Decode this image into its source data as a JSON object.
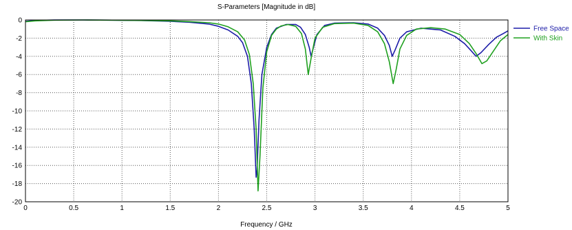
{
  "chart_data": {
    "type": "line",
    "title": "S-Parameters [Magnitude in dB]",
    "xlabel": "Frequency / GHz",
    "ylabel": "",
    "xlim": [
      0,
      5
    ],
    "ylim": [
      -20,
      0
    ],
    "x_ticks": [
      "0",
      "0.5",
      "1",
      "1.5",
      "2",
      "2.5",
      "3",
      "3.5",
      "4",
      "4.5",
      "5"
    ],
    "y_ticks": [
      "0",
      "-2",
      "-4",
      "-6",
      "-8",
      "-10",
      "-12",
      "-14",
      "-16",
      "-18",
      "-20"
    ],
    "grid": true,
    "legend_position": "right",
    "series": [
      {
        "name": "Free Space",
        "color": "#1c1ca8",
        "points": [
          [
            0.0,
            -0.15
          ],
          [
            0.1,
            -0.05
          ],
          [
            0.3,
            0.0
          ],
          [
            0.6,
            0.0
          ],
          [
            0.9,
            -0.02
          ],
          [
            1.2,
            -0.06
          ],
          [
            1.5,
            -0.15
          ],
          [
            1.7,
            -0.25
          ],
          [
            1.9,
            -0.45
          ],
          [
            2.0,
            -0.7
          ],
          [
            2.1,
            -1.1
          ],
          [
            2.2,
            -1.8
          ],
          [
            2.25,
            -2.5
          ],
          [
            2.3,
            -4.0
          ],
          [
            2.34,
            -7.0
          ],
          [
            2.37,
            -12.0
          ],
          [
            2.39,
            -17.3
          ],
          [
            2.4,
            -16.5
          ],
          [
            2.42,
            -11.0
          ],
          [
            2.45,
            -6.0
          ],
          [
            2.5,
            -3.0
          ],
          [
            2.55,
            -1.6
          ],
          [
            2.6,
            -0.9
          ],
          [
            2.7,
            -0.5
          ],
          [
            2.8,
            -0.5
          ],
          [
            2.85,
            -0.8
          ],
          [
            2.9,
            -1.6
          ],
          [
            2.94,
            -3.0
          ],
          [
            2.96,
            -4.0
          ],
          [
            2.98,
            -3.2
          ],
          [
            3.02,
            -1.6
          ],
          [
            3.1,
            -0.6
          ],
          [
            3.2,
            -0.35
          ],
          [
            3.4,
            -0.3
          ],
          [
            3.55,
            -0.45
          ],
          [
            3.65,
            -0.9
          ],
          [
            3.72,
            -1.7
          ],
          [
            3.77,
            -2.8
          ],
          [
            3.8,
            -4.0
          ],
          [
            3.83,
            -3.3
          ],
          [
            3.88,
            -2.0
          ],
          [
            3.95,
            -1.3
          ],
          [
            4.1,
            -0.9
          ],
          [
            4.3,
            -1.1
          ],
          [
            4.45,
            -1.8
          ],
          [
            4.55,
            -2.6
          ],
          [
            4.62,
            -3.4
          ],
          [
            4.67,
            -4.0
          ],
          [
            4.72,
            -3.6
          ],
          [
            4.8,
            -2.7
          ],
          [
            4.88,
            -1.9
          ],
          [
            4.95,
            -1.5
          ],
          [
            5.0,
            -1.2
          ]
        ]
      },
      {
        "name": "With Skin",
        "color": "#1fa01f",
        "points": [
          [
            0.0,
            -0.2
          ],
          [
            0.1,
            -0.1
          ],
          [
            0.3,
            -0.02
          ],
          [
            0.6,
            0.0
          ],
          [
            0.9,
            -0.02
          ],
          [
            1.2,
            -0.05
          ],
          [
            1.5,
            -0.1
          ],
          [
            1.7,
            -0.18
          ],
          [
            1.9,
            -0.3
          ],
          [
            2.0,
            -0.45
          ],
          [
            2.1,
            -0.75
          ],
          [
            2.2,
            -1.3
          ],
          [
            2.27,
            -2.2
          ],
          [
            2.32,
            -3.8
          ],
          [
            2.36,
            -7.0
          ],
          [
            2.39,
            -12.0
          ],
          [
            2.41,
            -18.8
          ],
          [
            2.43,
            -15.0
          ],
          [
            2.46,
            -7.5
          ],
          [
            2.5,
            -3.5
          ],
          [
            2.55,
            -1.7
          ],
          [
            2.6,
            -1.0
          ],
          [
            2.65,
            -0.65
          ],
          [
            2.72,
            -0.5
          ],
          [
            2.8,
            -0.7
          ],
          [
            2.86,
            -1.5
          ],
          [
            2.9,
            -3.2
          ],
          [
            2.93,
            -6.0
          ],
          [
            2.96,
            -4.2
          ],
          [
            3.0,
            -2.0
          ],
          [
            3.08,
            -0.8
          ],
          [
            3.2,
            -0.4
          ],
          [
            3.4,
            -0.35
          ],
          [
            3.55,
            -0.6
          ],
          [
            3.65,
            -1.3
          ],
          [
            3.72,
            -2.6
          ],
          [
            3.77,
            -4.6
          ],
          [
            3.81,
            -7.0
          ],
          [
            3.84,
            -5.5
          ],
          [
            3.88,
            -3.2
          ],
          [
            3.95,
            -1.7
          ],
          [
            4.05,
            -1.0
          ],
          [
            4.2,
            -0.85
          ],
          [
            4.35,
            -1.0
          ],
          [
            4.5,
            -1.6
          ],
          [
            4.6,
            -2.6
          ],
          [
            4.67,
            -3.7
          ],
          [
            4.73,
            -4.8
          ],
          [
            4.78,
            -4.5
          ],
          [
            4.85,
            -3.4
          ],
          [
            4.92,
            -2.3
          ],
          [
            5.0,
            -1.6
          ]
        ]
      }
    ]
  }
}
